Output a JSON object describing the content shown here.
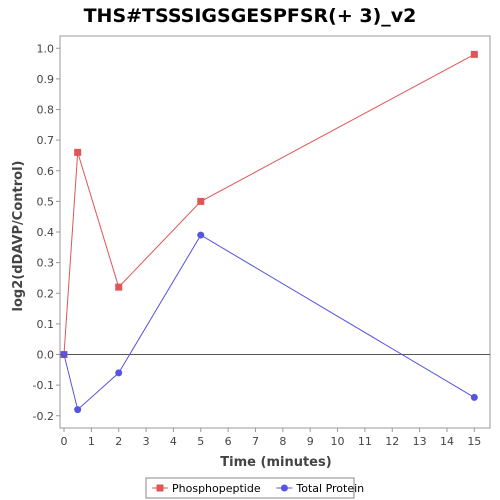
{
  "chart_data": {
    "type": "line",
    "title": "THS#TSSSIGSGESPFSR(+ 3)_v2",
    "xlabel": "Time (minutes)",
    "ylabel": "log2(dDAVP/Control)",
    "xlim": [
      0,
      15.5
    ],
    "ylim": [
      -0.24,
      1.04
    ],
    "x_ticks": [
      0,
      1,
      2,
      3,
      4,
      5,
      6,
      7,
      8,
      9,
      10,
      11,
      12,
      13,
      14,
      15
    ],
    "y_ticks": [
      -0.2,
      -0.1,
      0.0,
      0.1,
      0.2,
      0.3,
      0.4,
      0.5,
      0.6,
      0.7,
      0.8,
      0.9,
      1.0
    ],
    "y_tick_labels": [
      "-0.2",
      "-0.1",
      "0.0",
      "0.1",
      "0.2",
      "0.3",
      "0.4",
      "0.5",
      "0.6",
      "0.7",
      "0.8",
      "0.9",
      "1.0"
    ],
    "zero_line": true,
    "grid": false,
    "legend_position": "bottom",
    "series": [
      {
        "name": "Phosphopeptide",
        "color": "#e05555",
        "marker": "square",
        "x": [
          0,
          0.5,
          2,
          5,
          15
        ],
        "y": [
          0.0,
          0.66,
          0.22,
          0.5,
          0.98
        ]
      },
      {
        "name": "Total Protein",
        "color": "#5555e0",
        "marker": "circle",
        "x": [
          0,
          0.5,
          2,
          5,
          15
        ],
        "y": [
          0.0,
          -0.18,
          -0.06,
          0.39,
          -0.14
        ]
      }
    ]
  }
}
